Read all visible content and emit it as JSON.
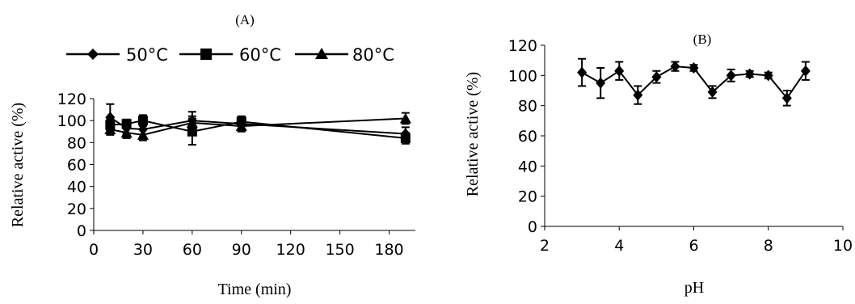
{
  "chart_data": [
    {
      "type": "line",
      "panel_label": "(A)",
      "xlabel": "Time (min)",
      "ylabel": "Relative active (%)",
      "ylim": [
        0,
        120
      ],
      "y_ticks": [
        "0",
        "20",
        "40",
        "60",
        "80",
        "100",
        "120"
      ],
      "x_tick_labels": [
        "0",
        "30",
        "60",
        "90",
        "120",
        "150",
        "180"
      ],
      "x_tick_values": [
        0,
        30,
        60,
        90,
        120,
        150,
        180
      ],
      "grid": false,
      "legend": "top",
      "x": [
        10,
        20,
        30,
        60,
        90,
        190
      ],
      "series": [
        {
          "name": "50°C",
          "marker": "diamond",
          "values": [
            103,
            93,
            92,
            100,
            97,
            88
          ],
          "errors": [
            12,
            5,
            8,
            8,
            7,
            6
          ]
        },
        {
          "name": "60°C",
          "marker": "square",
          "values": [
            96,
            97,
            100,
            90,
            99,
            84
          ],
          "errors": [
            5,
            4,
            5,
            12,
            4,
            5
          ]
        },
        {
          "name": "80°C",
          "marker": "triangle",
          "values": [
            92,
            89,
            87,
            98,
            95,
            102
          ],
          "errors": [
            5,
            5,
            5,
            6,
            4,
            5
          ]
        }
      ]
    },
    {
      "type": "line",
      "panel_label": "(B)",
      "xlabel": "pH",
      "ylabel": "Relative active (%)",
      "ylim": [
        0,
        120
      ],
      "xlim": [
        2,
        10
      ],
      "y_ticks": [
        "0",
        "20",
        "40",
        "60",
        "80",
        "100",
        "120"
      ],
      "x_tick_labels": [
        "2",
        "4",
        "6",
        "8",
        "10"
      ],
      "x_tick_values": [
        2,
        4,
        6,
        8,
        10
      ],
      "grid": false,
      "legend": "none",
      "x": [
        3,
        3.5,
        4,
        4.5,
        5,
        5.5,
        6,
        6.5,
        7,
        7.5,
        8,
        8.5,
        9
      ],
      "series": [
        {
          "marker": "diamond",
          "values": [
            102,
            95,
            103,
            87,
            99,
            106,
            105,
            89,
            100,
            101,
            100,
            85,
            103
          ],
          "errors": [
            9,
            10,
            6,
            6,
            4,
            3,
            2,
            4,
            4,
            2,
            2,
            5,
            6
          ]
        }
      ]
    }
  ]
}
